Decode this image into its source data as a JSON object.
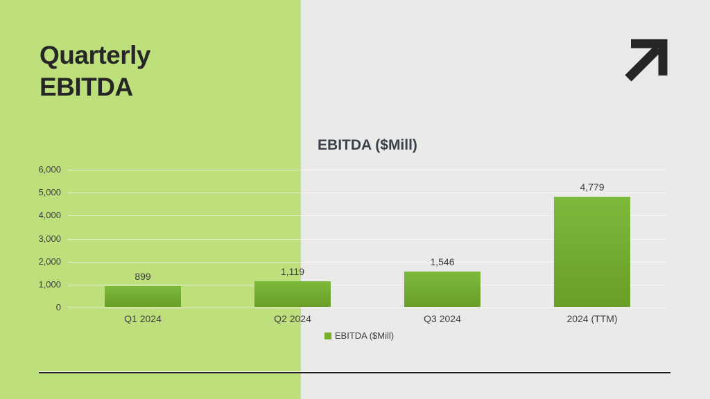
{
  "slide": {
    "title_line1": "Quarterly",
    "title_line2": "EBITDA"
  },
  "icons": {
    "trend_arrow": "up-right-arrow"
  },
  "colors": {
    "accent_panel": "#bde07d",
    "background": "#eaeae8",
    "bar_top": "#7db93c",
    "bar_bottom": "#699f27",
    "legend_marker": "#76ad2b",
    "title_text": "#262626",
    "chart_text": "#3d3d3d",
    "divider": "#1c1c1c"
  },
  "chart_data": {
    "type": "bar",
    "title": "EBITDA ($Mill)",
    "categories": [
      "Q1 2024",
      "Q2 2024",
      "Q3 2024",
      "2024 (TTM)"
    ],
    "values": [
      899,
      1119,
      1546,
      4779
    ],
    "value_labels": [
      "899",
      "1,119",
      "1,546",
      "4,779"
    ],
    "xlabel": "",
    "ylabel": "",
    "ylim": [
      0,
      6000
    ],
    "y_ticks": [
      "0",
      "1,000",
      "2,000",
      "3,000",
      "4,000",
      "5,000",
      "6,000"
    ],
    "grid": true,
    "legend": [
      "EBITDA ($Mill)"
    ],
    "legend_position": "bottom"
  }
}
